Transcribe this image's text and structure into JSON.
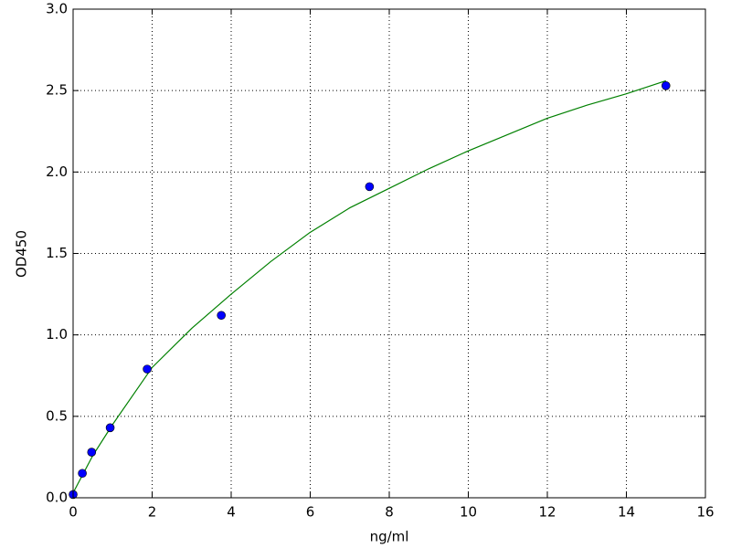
{
  "chart_data": {
    "type": "scatter",
    "x_label": "ng/ml",
    "y_label": "OD450",
    "xlim": [
      0,
      16
    ],
    "xticks": [
      0,
      2,
      4,
      6,
      8,
      10,
      12,
      14,
      16
    ],
    "ylim": [
      0,
      3
    ],
    "yticks": [
      {
        "value": 0,
        "label": "0.0"
      },
      0.5,
      {
        "value": 1,
        "label": "1.0"
      },
      1.5,
      {
        "value": 2,
        "label": "2.0"
      },
      2.5,
      {
        "value": 3,
        "label": "3.0"
      }
    ],
    "grid": true,
    "series": [
      {
        "kind": "line",
        "color": "#008000",
        "x": [
          0,
          0.5,
          1,
          2,
          3,
          4,
          5,
          6,
          7,
          8,
          9,
          10,
          11,
          12,
          13,
          14,
          15
        ],
        "values": [
          0.03,
          0.26,
          0.45,
          0.8,
          1.04,
          1.25,
          1.45,
          1.63,
          1.78,
          1.9,
          2.02,
          2.13,
          2.23,
          2.33,
          2.41,
          2.48,
          2.56
        ]
      },
      {
        "kind": "scatter",
        "color": "#0000ff",
        "x": [
          0,
          0.234,
          0.469,
          0.938,
          1.875,
          3.75,
          7.5,
          15
        ],
        "values": [
          0.02,
          0.15,
          0.28,
          0.43,
          0.79,
          1.12,
          1.91,
          2.53
        ]
      }
    ]
  }
}
